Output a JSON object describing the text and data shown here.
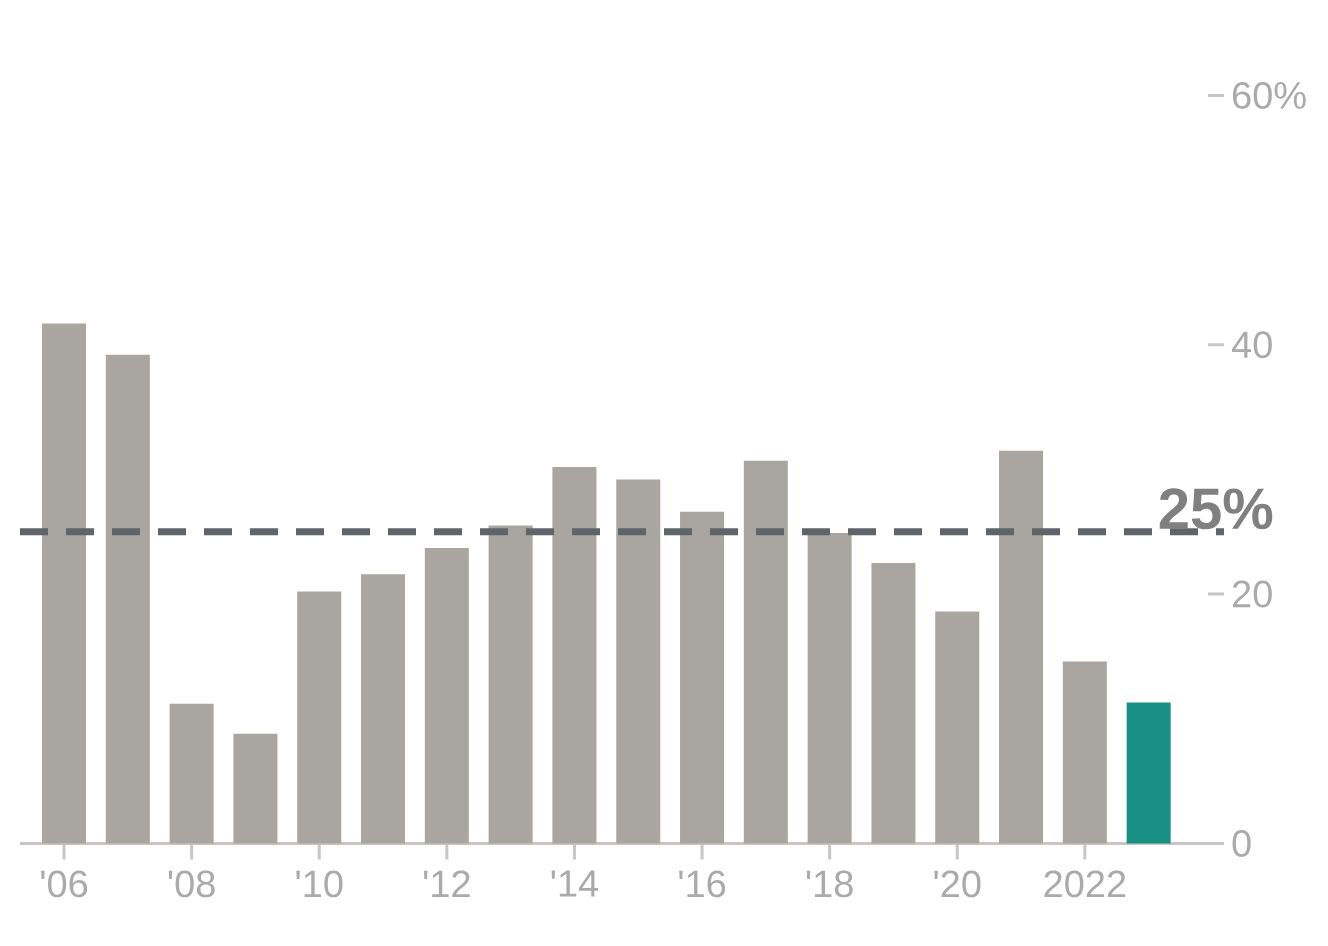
{
  "chart_data": {
    "type": "bar",
    "categories": [
      "'06",
      null,
      "'08",
      null,
      "'10",
      null,
      "'12",
      null,
      "'14",
      null,
      "'16",
      null,
      "'18",
      null,
      "'20",
      null,
      "2022",
      null
    ],
    "values": [
      41.7,
      39.2,
      11.2,
      8.8,
      20.2,
      21.6,
      23.7,
      25.5,
      30.2,
      29.2,
      26.6,
      30.7,
      24.9,
      22.5,
      18.6,
      31.5,
      14.6,
      11.3
    ],
    "colors": [
      "#a9a6a1",
      "#a9a6a1",
      "#a9a6a1",
      "#a9a6a1",
      "#a9a6a1",
      "#a9a6a1",
      "#a9a6a1",
      "#a9a6a1",
      "#a9a6a1",
      "#a9a6a1",
      "#a9a6a1",
      "#a9a6a1",
      "#a9a6a1",
      "#a9a6a1",
      "#a9a6a1",
      "#a9a6a1",
      "#a9a6a1",
      "#1a9084"
    ],
    "ylim": [
      0,
      60
    ],
    "yticks": [
      0,
      20,
      40,
      {
        "value": 60,
        "label": "60%"
      }
    ],
    "ref_lines": [
      {
        "axis": "y",
        "value": 25,
        "label": "25%",
        "color": "#5f6469",
        "line_style": "dashed"
      }
    ]
  }
}
